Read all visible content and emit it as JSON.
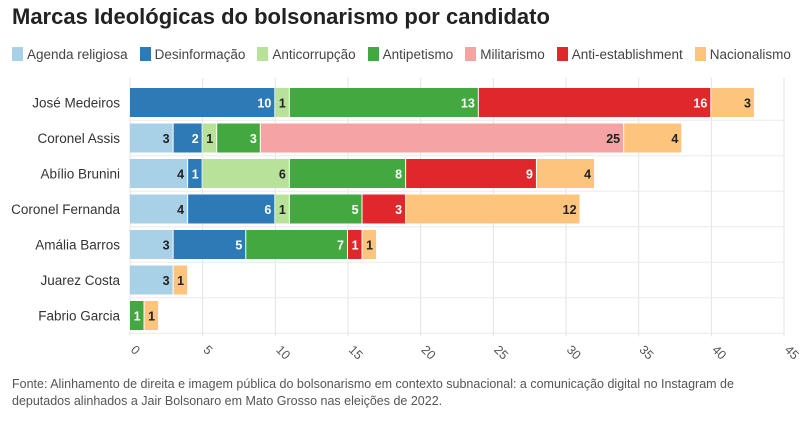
{
  "chart_data": {
    "type": "bar",
    "orientation": "horizontal",
    "stacked": true,
    "title": "Marcas Ideológicas do bolsonarismo por candidato",
    "categories": [
      "José Medeiros",
      "Coronel Assis",
      "Abílio Brunini",
      "Coronel Fernanda",
      "Amália Barros",
      "Juarez Costa",
      "Fabrio Garcia"
    ],
    "series": [
      {
        "name": "Agenda religiosa",
        "color": "#a8d0e6",
        "label_color": "#222222",
        "values": [
          0,
          3,
          4,
          4,
          3,
          3,
          0
        ]
      },
      {
        "name": "Desinformação",
        "color": "#2e7ab7",
        "label_color": "#ffffff",
        "values": [
          10,
          2,
          1,
          6,
          5,
          0,
          0
        ]
      },
      {
        "name": "Anticorrupção",
        "color": "#b8e29a",
        "label_color": "#222222",
        "values": [
          1,
          1,
          6,
          1,
          0,
          0,
          0
        ]
      },
      {
        "name": "Antipetismo",
        "color": "#43a83f",
        "label_color": "#ffffff",
        "values": [
          13,
          3,
          8,
          5,
          7,
          0,
          1
        ]
      },
      {
        "name": "Militarismo",
        "color": "#f5a3a3",
        "label_color": "#222222",
        "values": [
          0,
          25,
          0,
          0,
          0,
          0,
          0
        ]
      },
      {
        "name": "Anti-establishment",
        "color": "#e0282c",
        "label_color": "#ffffff",
        "values": [
          16,
          0,
          9,
          3,
          1,
          0,
          0
        ]
      },
      {
        "name": "Nacionalismo",
        "color": "#fdc47e",
        "label_color": "#222222",
        "values": [
          3,
          4,
          4,
          12,
          1,
          1,
          1
        ]
      }
    ],
    "x_ticks": [
      0,
      5,
      10,
      15,
      20,
      25,
      30,
      35,
      40,
      45
    ],
    "xlim": [
      0,
      45
    ],
    "grid": true,
    "legend_position": "top",
    "source": "Fonte: Alinhamento de direita e imagem pública do bolsonarismo em contexto subnacional: a comunicação digital no Instagram de deputados alinhados a Jair Bolsonaro em Mato Grosso nas eleições de 2022."
  }
}
